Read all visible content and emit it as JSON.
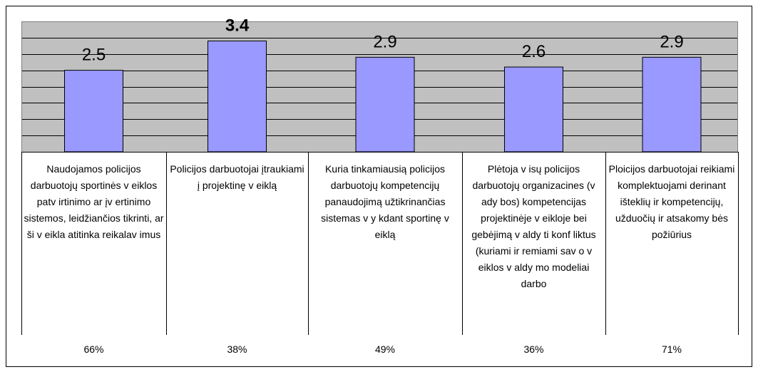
{
  "chart_data": {
    "type": "bar",
    "categories": [
      "Naudojamos policijos darbuotojų sportinės v eiklos patv irtinimo ar įv ertinimo sistemos, leidžiančios tikrinti, ar ši v eikla atitinka reikalav imus",
      "Policijos darbuotojai įtraukiami į projektinę v eiklą",
      "Kuria tinkamiausią policijos darbuotojų kompetencijų panaudojimą užtikrinančias sistemas v y kdant sportinę v eiklą",
      "Plėtoja v isų policijos darbuotojų organizacines (v ady bos) kompetencijas projektinėje v eikloje bei gebėjimą v aldy ti konf liktus (kuriami ir remiami sav o v eiklos v aldy mo modeliai darbo",
      "Ploicijos darbuotojai reikiami komplektuojami derinant išteklių ir kompetencijų, užduočių ir atsakomy bės požiūrius"
    ],
    "values": [
      2.5,
      3.4,
      2.9,
      2.6,
      2.9
    ],
    "bold_value_index": 1,
    "color": "#9999ff",
    "plot_background": "#c0c0c0",
    "ylim": [
      0,
      4
    ],
    "yticks": [
      0,
      0.5,
      1,
      1.5,
      2,
      2.5,
      3,
      3.5,
      4
    ],
    "grid": true,
    "shares": {
      "values": [
        66,
        38,
        49,
        36,
        71
      ],
      "value_labels": [
        "66%",
        "38%",
        "49%",
        "36%",
        "71%"
      ]
    }
  }
}
